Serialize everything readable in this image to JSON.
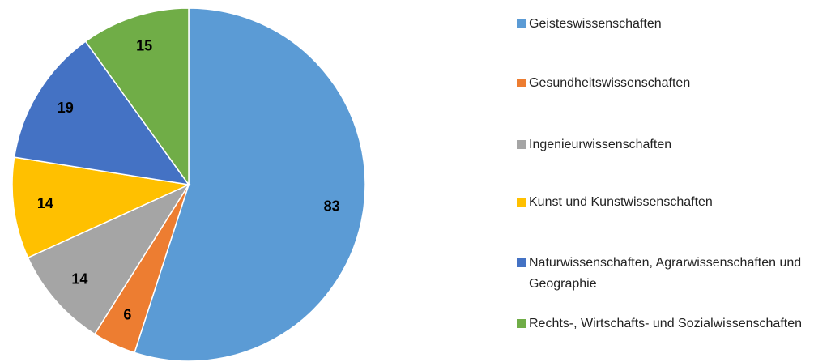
{
  "chart_data": {
    "type": "pie",
    "categories": [
      "Geisteswissenschaften",
      "Gesundheitswissenschaften",
      "Ingenieurwissenschaften",
      "Kunst und Kunstwissenschaften",
      "Naturwissenschaften, Agrarwissenschaften und Geographie",
      "Rechts-, Wirtschafts- und Sozialwissenschaften"
    ],
    "values": [
      83,
      6,
      14,
      14,
      19,
      15
    ],
    "colors": [
      "#5b9bd5",
      "#ed7d31",
      "#a5a5a5",
      "#ffc000",
      "#4472c4",
      "#70ad47"
    ],
    "legend": "right"
  }
}
